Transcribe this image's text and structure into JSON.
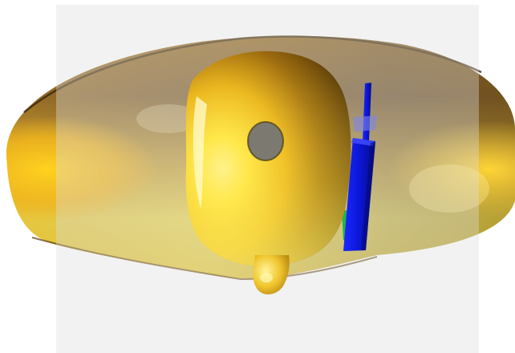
{
  "scene": {
    "background_color": "#ffffff",
    "plane_color": "#dcdcdc",
    "surface_colors": {
      "highlight": "#fff36a",
      "mid": "#e0b21c",
      "shadow": "#5a3c08"
    },
    "blade_color": "#0a13d8",
    "base_color": "#1fb64a",
    "hole_color": "#7c7a70"
  }
}
